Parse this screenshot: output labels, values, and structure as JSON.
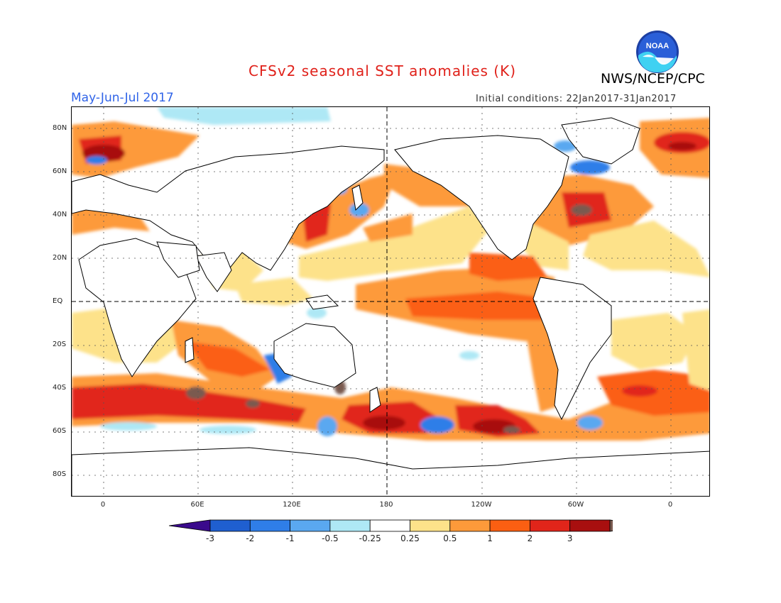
{
  "header": {
    "title": "CFSv2 seasonal SST anomalies (K)",
    "agency": "NWS/NCEP/CPC",
    "period": "May-Jun-Jul 2017",
    "initial_conditions": "Initial conditions: 22Jan2017-31Jan2017",
    "logo_text": "NOAA"
  },
  "axes": {
    "lat_labels": [
      "80N",
      "60N",
      "40N",
      "20N",
      "EQ",
      "20S",
      "40S",
      "60S",
      "80S"
    ],
    "lon_labels": [
      "0",
      "60E",
      "120E",
      "180",
      "120W",
      "60W",
      "0"
    ]
  },
  "colorbar": {
    "tick_labels": [
      "-3",
      "-2",
      "-1",
      "-0.5",
      "-0.25",
      "0.25",
      "0.5",
      "1",
      "2",
      "3"
    ],
    "colors": [
      "#3a0a8c",
      "#1f5fd0",
      "#2f7ee8",
      "#5aa8f0",
      "#aee8f5",
      "#ffffff",
      "#fde28a",
      "#fd9a3a",
      "#fb5f12",
      "#e1251a",
      "#a80f0f",
      "#7a5a50"
    ]
  },
  "colors": {
    "title": "#e0211a",
    "period": "#2f63e8"
  }
}
